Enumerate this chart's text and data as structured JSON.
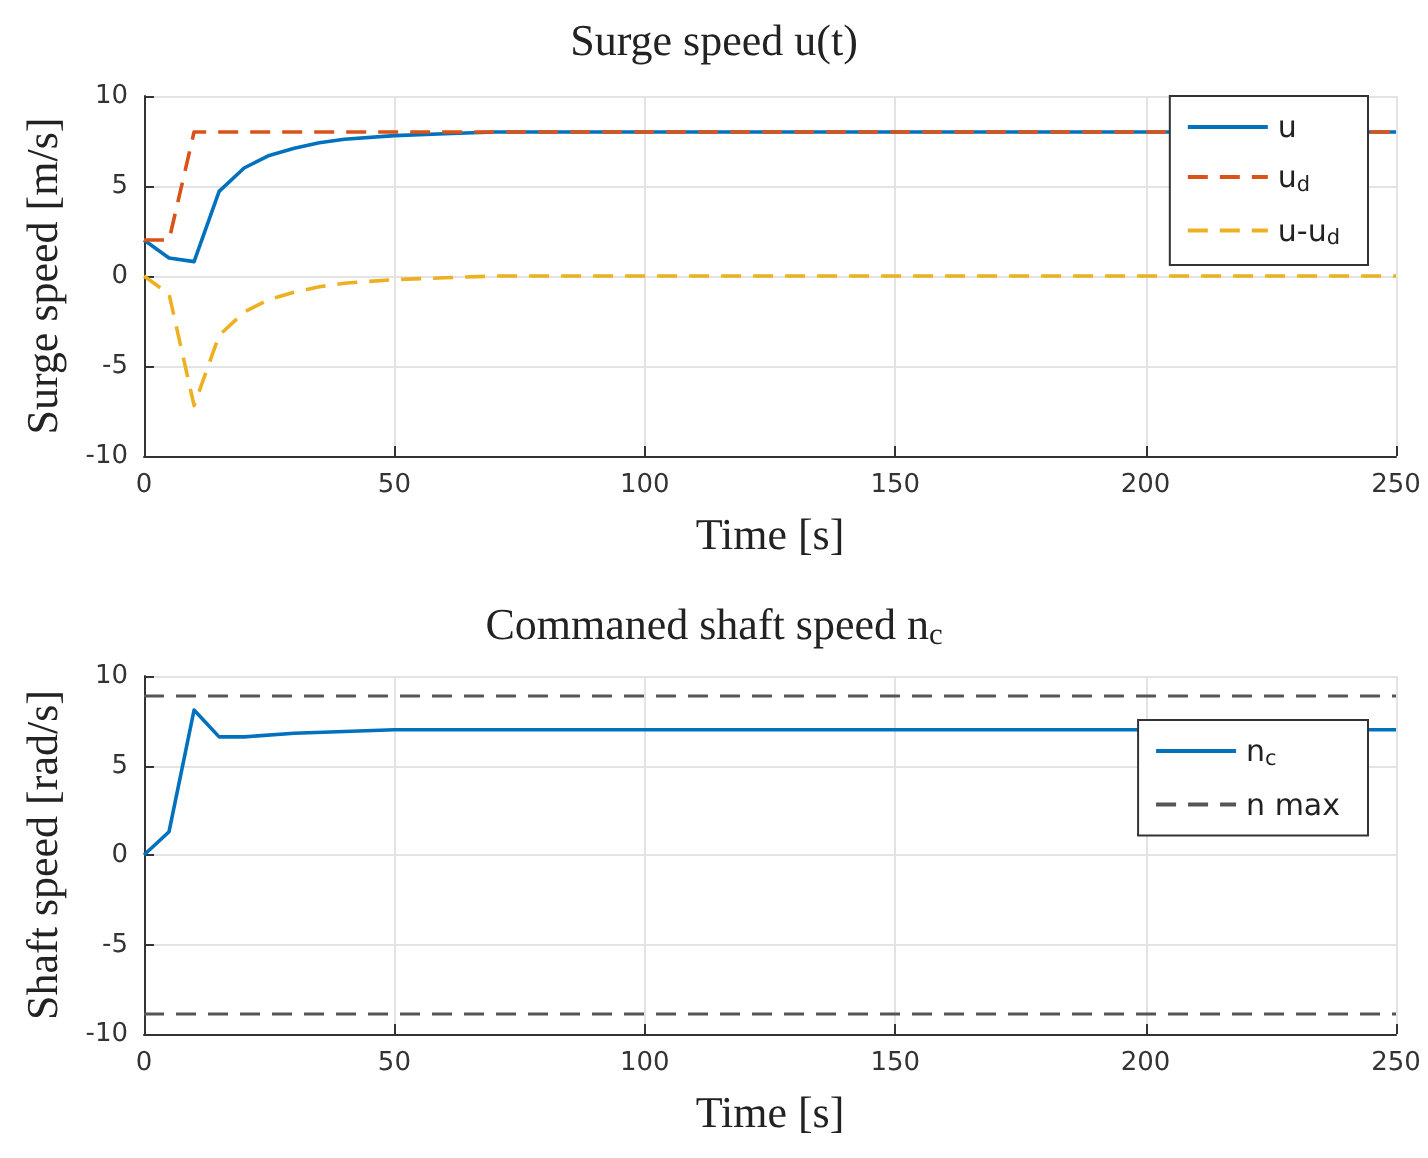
{
  "chart_data": [
    {
      "type": "line",
      "title": "Surge speed u(t)",
      "xlabel": "Time [s]",
      "ylabel": "Surge speed [m/s]",
      "xlim": [
        0,
        250
      ],
      "xticks": [
        0,
        50,
        100,
        150,
        200,
        250
      ],
      "ylim": [
        -10,
        10
      ],
      "yticks": [
        -10,
        -5,
        0,
        5,
        10
      ],
      "grid": true,
      "legend": "top right",
      "marker": "none",
      "series": [
        {
          "name": "u",
          "color": "#0072bd",
          "line_style": "solid",
          "x": [
            0,
            5,
            10,
            15,
            20,
            25,
            30,
            35,
            40,
            50,
            60,
            70,
            250
          ],
          "values": [
            2,
            1,
            0.8,
            4.7,
            6,
            6.7,
            7.1,
            7.4,
            7.6,
            7.8,
            7.9,
            8,
            8
          ]
        },
        {
          "name": "u$_{d}$",
          "color": "#d95319",
          "line_style": "dashed",
          "x": [
            0,
            5,
            10,
            250
          ],
          "values": [
            2,
            2,
            8,
            8
          ]
        },
        {
          "name": "u-u$_{d}$",
          "color": "#edb120",
          "line_style": "dashed",
          "x": [
            0,
            5,
            10,
            15,
            20,
            25,
            30,
            35,
            40,
            50,
            60,
            70,
            250
          ],
          "values": [
            0,
            -1,
            -7.2,
            -3.3,
            -2,
            -1.3,
            -0.9,
            -0.6,
            -0.4,
            -0.2,
            -0.1,
            0,
            0
          ]
        }
      ]
    },
    {
      "type": "line",
      "title": "Commaned shaft speed n$_{c}$",
      "xlabel": "Time [s]",
      "ylabel": "Shaft speed [rad/s]",
      "xlim": [
        0,
        250
      ],
      "xticks": [
        0,
        50,
        100,
        150,
        200,
        250
      ],
      "ylim": [
        -10,
        10
      ],
      "yticks": [
        -10,
        -5,
        0,
        5,
        10
      ],
      "grid": true,
      "legend": "top right",
      "marker": "none",
      "series": [
        {
          "name": "n$_{c}$",
          "color": "#0072bd",
          "line_style": "solid",
          "x": [
            0,
            5,
            10,
            15,
            20,
            30,
            40,
            50,
            250
          ],
          "values": [
            0,
            1.3,
            8.1,
            6.6,
            6.6,
            6.8,
            6.9,
            7,
            7
          ]
        }
      ],
      "ref_lines": [
        {
          "axis": "y",
          "value": 8.9,
          "label": "n max",
          "color": "#555555",
          "line_style": "dashed"
        },
        {
          "axis": "y",
          "value": -8.9,
          "color": "#555555",
          "line_style": "dashed"
        }
      ]
    }
  ]
}
